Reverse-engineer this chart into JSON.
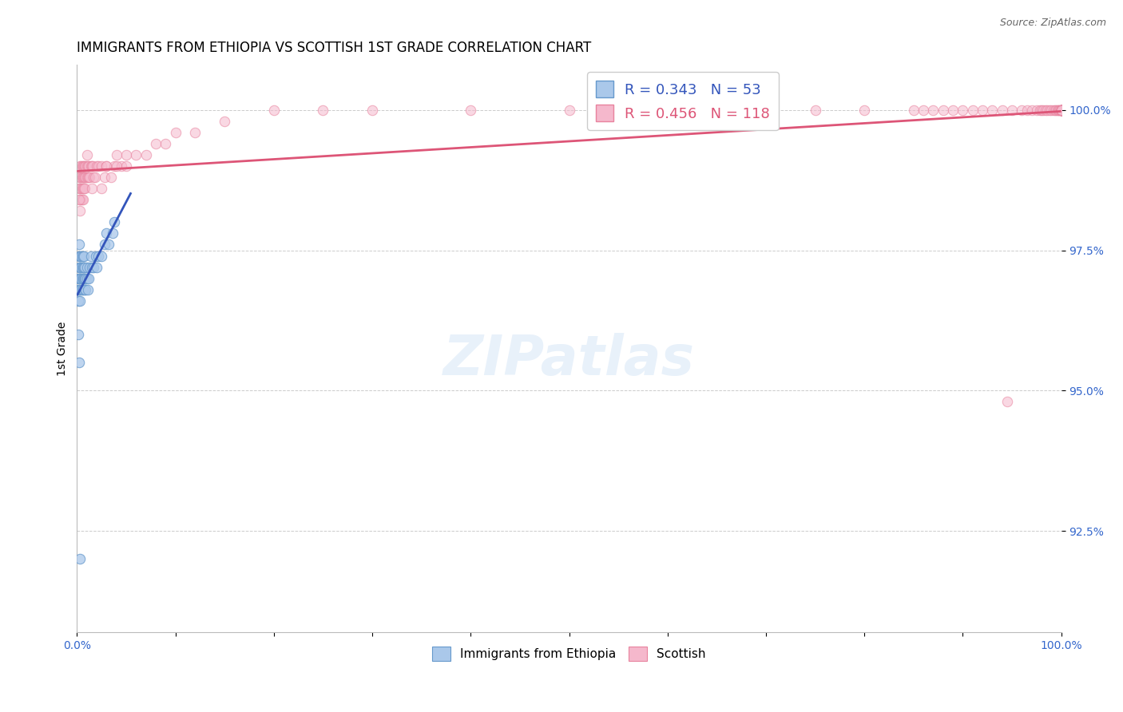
{
  "title": "IMMIGRANTS FROM ETHIOPIA VS SCOTTISH 1ST GRADE CORRELATION CHART",
  "source": "Source: ZipAtlas.com",
  "ylabel": "1st Grade",
  "ytick_labels": [
    "100.0%",
    "97.5%",
    "95.0%",
    "92.5%"
  ],
  "ytick_values": [
    1.0,
    0.975,
    0.95,
    0.925
  ],
  "xlim": [
    0.0,
    1.0
  ],
  "ylim": [
    0.907,
    1.008
  ],
  "legend_label_eth": "R = 0.343   N = 53",
  "legend_label_sco": "R = 0.456   N = 118",
  "eth_scatter_facecolor": "#aac8ea",
  "eth_scatter_edgecolor": "#6699cc",
  "sco_scatter_facecolor": "#f5b8cc",
  "sco_scatter_edgecolor": "#e8829e",
  "line_eth_color": "#3355bb",
  "line_sco_color": "#dd5577",
  "background_color": "#ffffff",
  "grid_color": "#cccccc",
  "title_fontsize": 12,
  "tick_fontsize": 10,
  "marker_size": 80,
  "eth_alpha": 0.75,
  "sco_alpha": 0.55,
  "eth_x": [
    0.001,
    0.001,
    0.001,
    0.002,
    0.002,
    0.002,
    0.002,
    0.002,
    0.003,
    0.003,
    0.003,
    0.003,
    0.003,
    0.004,
    0.004,
    0.004,
    0.004,
    0.005,
    0.005,
    0.005,
    0.005,
    0.006,
    0.006,
    0.006,
    0.006,
    0.007,
    0.007,
    0.007,
    0.008,
    0.008,
    0.008,
    0.009,
    0.009,
    0.01,
    0.01,
    0.011,
    0.012,
    0.013,
    0.014,
    0.015,
    0.017,
    0.019,
    0.02,
    0.022,
    0.025,
    0.028,
    0.03,
    0.032,
    0.036,
    0.038,
    0.001,
    0.002,
    0.003
  ],
  "eth_y": [
    0.97,
    0.968,
    0.966,
    0.972,
    0.974,
    0.976,
    0.97,
    0.968,
    0.974,
    0.972,
    0.97,
    0.968,
    0.966,
    0.974,
    0.972,
    0.97,
    0.968,
    0.974,
    0.972,
    0.97,
    0.968,
    0.974,
    0.972,
    0.97,
    0.968,
    0.974,
    0.972,
    0.97,
    0.972,
    0.97,
    0.968,
    0.97,
    0.968,
    0.972,
    0.97,
    0.968,
    0.97,
    0.972,
    0.974,
    0.972,
    0.972,
    0.974,
    0.972,
    0.974,
    0.974,
    0.976,
    0.978,
    0.976,
    0.978,
    0.98,
    0.96,
    0.955,
    0.92
  ],
  "sco_x": [
    0.002,
    0.002,
    0.003,
    0.003,
    0.003,
    0.003,
    0.004,
    0.004,
    0.004,
    0.004,
    0.005,
    0.005,
    0.005,
    0.005,
    0.006,
    0.006,
    0.006,
    0.006,
    0.007,
    0.007,
    0.007,
    0.008,
    0.008,
    0.008,
    0.009,
    0.009,
    0.01,
    0.01,
    0.01,
    0.011,
    0.011,
    0.012,
    0.012,
    0.013,
    0.014,
    0.015,
    0.016,
    0.017,
    0.018,
    0.02,
    0.022,
    0.025,
    0.028,
    0.03,
    0.035,
    0.038,
    0.04,
    0.045,
    0.05,
    0.06,
    0.07,
    0.08,
    0.09,
    0.1,
    0.12,
    0.15,
    0.2,
    0.25,
    0.3,
    0.4,
    0.5,
    0.6,
    0.7,
    0.75,
    0.8,
    0.85,
    0.86,
    0.87,
    0.88,
    0.89,
    0.9,
    0.91,
    0.92,
    0.93,
    0.94,
    0.95,
    0.96,
    0.965,
    0.97,
    0.975,
    0.978,
    0.98,
    0.982,
    0.984,
    0.986,
    0.988,
    0.99,
    0.992,
    0.994,
    0.995,
    0.996,
    0.997,
    0.998,
    0.999,
    1.0,
    1.0,
    1.0,
    1.0,
    1.0,
    1.0,
    1.0,
    1.0,
    1.0,
    1.0,
    1.0,
    1.0,
    1.0,
    1.0,
    1.0,
    1.0,
    0.002,
    0.003,
    0.015,
    0.025,
    0.03,
    0.04,
    0.05,
    0.945
  ],
  "sco_y": [
    0.988,
    0.986,
    0.99,
    0.988,
    0.986,
    0.984,
    0.99,
    0.988,
    0.986,
    0.984,
    0.99,
    0.988,
    0.986,
    0.984,
    0.99,
    0.988,
    0.986,
    0.984,
    0.99,
    0.988,
    0.986,
    0.99,
    0.988,
    0.986,
    0.99,
    0.988,
    0.992,
    0.99,
    0.988,
    0.99,
    0.988,
    0.99,
    0.988,
    0.988,
    0.99,
    0.99,
    0.99,
    0.988,
    0.988,
    0.99,
    0.99,
    0.99,
    0.988,
    0.99,
    0.988,
    0.99,
    0.992,
    0.99,
    0.992,
    0.992,
    0.992,
    0.994,
    0.994,
    0.996,
    0.996,
    0.998,
    1.0,
    1.0,
    1.0,
    1.0,
    1.0,
    1.0,
    1.0,
    1.0,
    1.0,
    1.0,
    1.0,
    1.0,
    1.0,
    1.0,
    1.0,
    1.0,
    1.0,
    1.0,
    1.0,
    1.0,
    1.0,
    1.0,
    1.0,
    1.0,
    1.0,
    1.0,
    1.0,
    1.0,
    1.0,
    1.0,
    1.0,
    1.0,
    1.0,
    1.0,
    1.0,
    1.0,
    1.0,
    1.0,
    1.0,
    1.0,
    1.0,
    1.0,
    1.0,
    1.0,
    1.0,
    1.0,
    1.0,
    1.0,
    1.0,
    1.0,
    1.0,
    1.0,
    1.0,
    1.0,
    0.984,
    0.982,
    0.986,
    0.986,
    0.99,
    0.99,
    0.99,
    0.948
  ]
}
